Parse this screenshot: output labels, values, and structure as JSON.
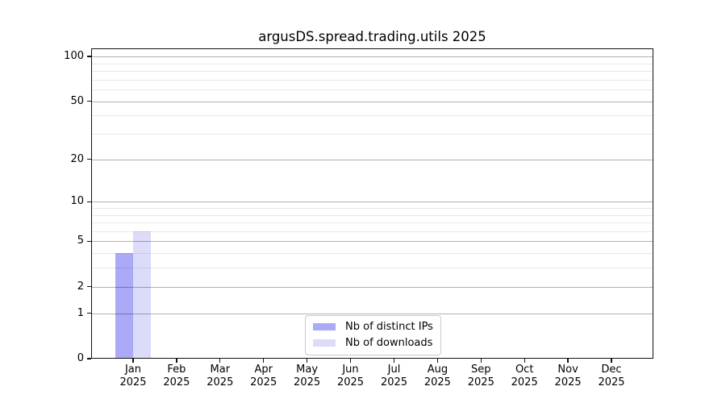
{
  "chart_data": {
    "type": "bar",
    "title": "argusDS.spread.trading.utils 2025",
    "x_tick_months": [
      "Jan",
      "Feb",
      "Mar",
      "Apr",
      "May",
      "Jun",
      "Jul",
      "Aug",
      "Sep",
      "Oct",
      "Nov",
      "Dec"
    ],
    "x_tick_year": "2025",
    "y_major_ticks": [
      0,
      1,
      2,
      5,
      10,
      20,
      50,
      100
    ],
    "y_minor_ticks": [
      3,
      4,
      6,
      7,
      8,
      9,
      30,
      40,
      60,
      70,
      80,
      90
    ],
    "y_scale": "log1p",
    "ylim": [
      0,
      113
    ],
    "grid": "both",
    "grid_above_bars": true,
    "legend_position": "lower center",
    "series": [
      {
        "name": "Nb of distinct IPs",
        "color": "#aaaaf6",
        "values": [
          4,
          0,
          0,
          0,
          0,
          0,
          0,
          0,
          0,
          0,
          0,
          0
        ]
      },
      {
        "name": "Nb of downloads",
        "color": "#dcdcf8",
        "values": [
          6,
          0,
          0,
          0,
          0,
          0,
          0,
          0,
          0,
          0,
          0,
          0
        ]
      }
    ]
  }
}
